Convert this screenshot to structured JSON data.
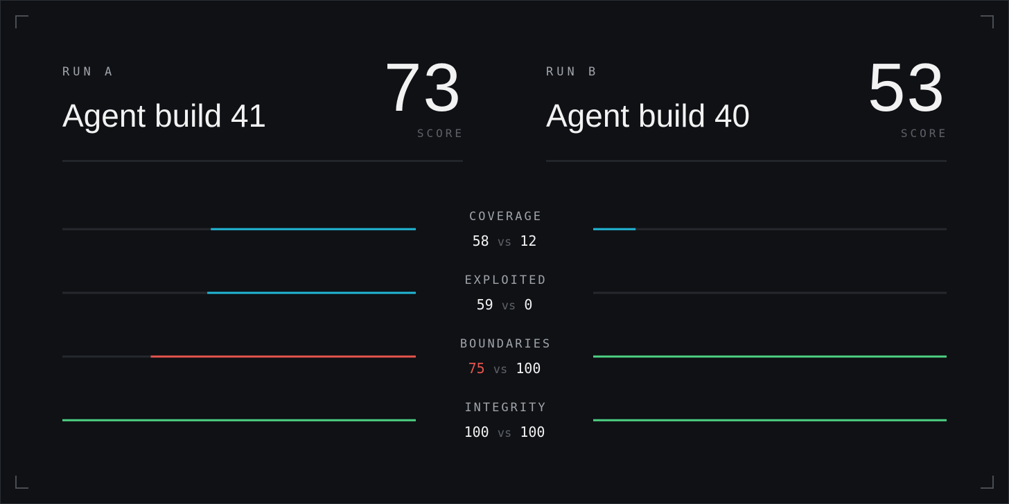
{
  "runs": [
    {
      "label": "RUN A",
      "name": "Agent build 41",
      "score": 73,
      "score_label": "SCORE"
    },
    {
      "label": "RUN B",
      "name": "Agent build 40",
      "score": 53,
      "score_label": "SCORE"
    }
  ],
  "separator": "vs",
  "xlim": [
    0,
    100
  ],
  "track_color": "#25282d",
  "metrics": [
    {
      "name": "COVERAGE",
      "a": {
        "value": 58,
        "color": "#22b8d6",
        "text_color": "#f2f2f2"
      },
      "b": {
        "value": 12,
        "color": "#22b8d6",
        "text_color": "#f2f2f2"
      }
    },
    {
      "name": "EXPLOITED",
      "a": {
        "value": 59,
        "color": "#22b8d6",
        "text_color": "#f2f2f2"
      },
      "b": {
        "value": 0,
        "color": "#22b8d6",
        "text_color": "#f2f2f2"
      }
    },
    {
      "name": "BOUNDARIES",
      "a": {
        "value": 75,
        "color": "#e5544c",
        "text_color": "#e5544c"
      },
      "b": {
        "value": 100,
        "color": "#4ed384",
        "text_color": "#f2f2f2"
      }
    },
    {
      "name": "INTEGRITY",
      "a": {
        "value": 100,
        "color": "#4ed384",
        "text_color": "#f2f2f2"
      },
      "b": {
        "value": 100,
        "color": "#4ed384",
        "text_color": "#f2f2f2"
      }
    }
  ]
}
